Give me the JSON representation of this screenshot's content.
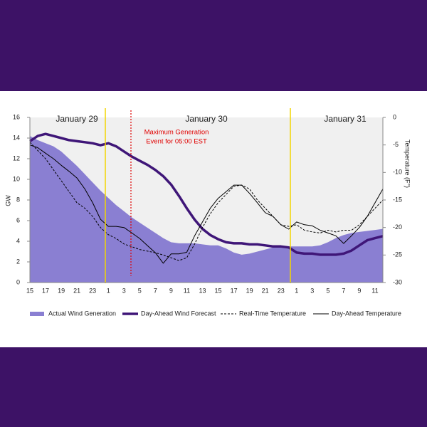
{
  "chart_data": {
    "type": "line",
    "categories": [
      "15",
      null,
      "17",
      null,
      "19",
      null,
      "21",
      null,
      "23",
      null,
      "1",
      null,
      "3",
      null,
      "5",
      null,
      "7",
      null,
      "9",
      null,
      "11",
      null,
      "13",
      null,
      "15",
      null,
      "17",
      null,
      "19",
      null,
      "21",
      null,
      "23",
      null,
      "1",
      null,
      "3",
      null,
      "5",
      null,
      "7",
      null,
      "9",
      null,
      "11",
      null
    ],
    "ylabel": "GW",
    "y2label": "Temperature (F°)",
    "ylim": [
      0,
      16
    ],
    "yticks": [
      0,
      2,
      4,
      6,
      8,
      10,
      12,
      14,
      16
    ],
    "y2lim": [
      -30,
      0
    ],
    "y2ticks": [
      0,
      -5,
      -10,
      -15,
      -20,
      -25,
      -30
    ],
    "annotations": [
      "January 29",
      "January 30",
      "January 31",
      "Maximum Generation",
      "Event for 05:00 EST"
    ],
    "series": [
      {
        "name": "Actual Wind Generation",
        "color": "#8a7fd2",
        "style": "area",
        "values": [
          14.2,
          13.8,
          13.5,
          13.2,
          12.7,
          12.0,
          11.3,
          10.5,
          9.7,
          8.9,
          8.2,
          7.5,
          6.9,
          6.3,
          5.8,
          5.3,
          4.8,
          4.3,
          3.9,
          3.8,
          3.8,
          3.8,
          3.7,
          3.6,
          3.6,
          3.3,
          2.9,
          2.7,
          2.8,
          3.0,
          3.2,
          3.4,
          3.5,
          3.5,
          3.5,
          3.5,
          3.5,
          3.6,
          3.9,
          4.3,
          4.6,
          4.8,
          4.9,
          5.0,
          5.1,
          5.2
        ]
      },
      {
        "name": "Day-Ahead Wind Forecast",
        "color": "#3f1678",
        "style": "thick",
        "values": [
          13.7,
          14.2,
          14.4,
          14.2,
          14.0,
          13.8,
          13.7,
          13.6,
          13.5,
          13.3,
          13.5,
          13.2,
          12.7,
          12.2,
          11.8,
          11.4,
          10.9,
          10.3,
          9.5,
          8.4,
          7.2,
          6.1,
          5.2,
          4.6,
          4.2,
          3.9,
          3.8,
          3.8,
          3.7,
          3.7,
          3.6,
          3.5,
          3.5,
          3.4,
          2.9,
          2.8,
          2.8,
          2.7,
          2.7,
          2.7,
          2.8,
          3.1,
          3.6,
          4.1,
          4.3,
          4.5
        ]
      },
      {
        "name": "Real-Time Temperature",
        "color": "#000000",
        "style": "dashed",
        "axis": "y2",
        "values": [
          -4.5,
          -6,
          -7.5,
          -9.5,
          -11.5,
          -13.5,
          -15.5,
          -16.5,
          -18,
          -20,
          -21.3,
          -22,
          -23,
          -23.5,
          -24,
          -24.3,
          -24.6,
          -25,
          -25.5,
          -26,
          -25.5,
          -23,
          -20,
          -17.5,
          -15.5,
          -14,
          -12.5,
          -12.3,
          -13,
          -15,
          -16.5,
          -18,
          -19.5,
          -19.8,
          -19.5,
          -20.5,
          -20.8,
          -21,
          -20.5,
          -20.8,
          -20.5,
          -20.5,
          -19.5,
          -18,
          -16.5,
          -15
        ]
      },
      {
        "name": "Day-Ahead Temperature",
        "color": "#000000",
        "style": "solid",
        "axis": "y2",
        "values": [
          -5,
          -5.5,
          -6.5,
          -7.5,
          -8.7,
          -9.8,
          -11,
          -13,
          -15.5,
          -18.5,
          -19.8,
          -19.8,
          -20,
          -21,
          -22,
          -23.3,
          -24.6,
          -26.5,
          -24.8,
          -24.8,
          -24.5,
          -21.5,
          -19,
          -16.5,
          -14.7,
          -13.5,
          -12.3,
          -12.3,
          -13.8,
          -15.5,
          -17.3,
          -18,
          -19.5,
          -20.3,
          -19,
          -19.5,
          -19.7,
          -20.5,
          -21,
          -21.5,
          -22.9,
          -21.5,
          -20,
          -18,
          -15.5,
          -13
        ]
      }
    ]
  }
}
